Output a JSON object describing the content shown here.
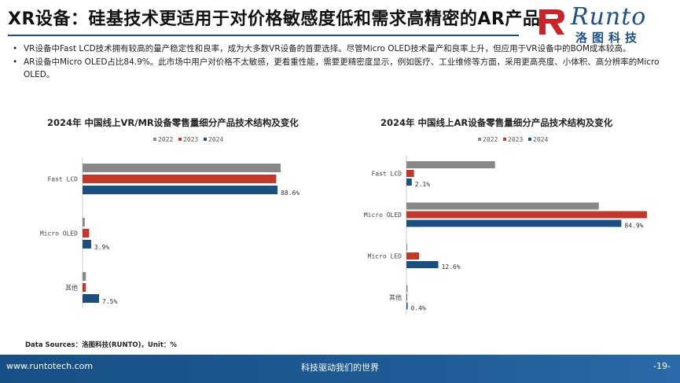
{
  "header": {
    "title": "XR设备：硅基技术更适用于对价格敏感度低和需求高精密的AR产品",
    "logo_text": "Runto",
    "logo_cn": "洛图科技",
    "logo_icon": "runto-r-logo-icon"
  },
  "bullets": [
    "VR设备中Fast LCD技术拥有较高的量产稳定性和良率，成为大多数VR设备的首要选择。尽管Micro OLED技术量产和良率上升，但应用于VR设备中的BOM成本较高。",
    "AR设备中Micro OLED占比84.9%。此市场中用户对价格不太敏感，更看重性能，需要更精密度显示，例如医疗、工业维修等方面，采用更高亮度、小体积、高分辨率的Micro OLED。"
  ],
  "colors": {
    "y2022": "#888888",
    "y2023": "#c0392b",
    "y2024": "#1a4f7e"
  },
  "chart_data": [
    {
      "type": "bar",
      "orientation": "horizontal",
      "title": "2024年 中国线上VR/MR设备零售量细分产品技术结构及变化",
      "categories": [
        "Fast LCD",
        "Micro OLED",
        "其他"
      ],
      "series": [
        {
          "name": "2022",
          "values": [
            90.0,
            1.0,
            1.5
          ]
        },
        {
          "name": "2023",
          "values": [
            88.0,
            3.0,
            1.5
          ]
        },
        {
          "name": "2024",
          "values": [
            88.6,
            3.9,
            7.5
          ]
        }
      ],
      "data_labels": [
        "88.6%",
        "3.9%",
        "7.5%"
      ],
      "xlim": [
        0,
        100
      ],
      "legend_position": "top-center",
      "grid": false
    },
    {
      "type": "bar",
      "orientation": "horizontal",
      "title": "2024年 中国线上AR设备零售量细分产品技术结构及变化",
      "categories": [
        "Fast LCD",
        "Micro OLED",
        "Micro LED",
        "其他"
      ],
      "series": [
        {
          "name": "2022",
          "values": [
            35.0,
            76.0,
            0.0,
            0.3
          ]
        },
        {
          "name": "2023",
          "values": [
            3.0,
            95.0,
            5.0,
            0.0
          ]
        },
        {
          "name": "2024",
          "values": [
            2.1,
            84.9,
            12.6,
            0.4
          ]
        }
      ],
      "data_labels": [
        "2.1%",
        "84.9%",
        "12.6%",
        "0.4%"
      ],
      "xlim": [
        0,
        100
      ],
      "legend_position": "top-center",
      "grid": false
    }
  ],
  "source": "Data Sources：洛图科技(RUNTO)，Unit：%",
  "footer": {
    "url": "www.runtotech.com",
    "slogan": "科技驱动我们的世界",
    "page": "-19-"
  }
}
